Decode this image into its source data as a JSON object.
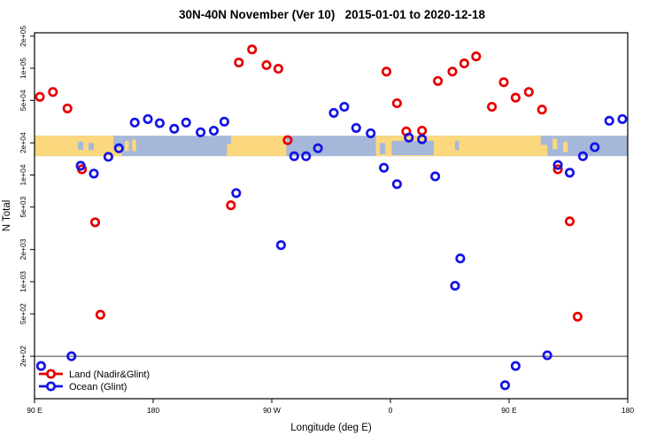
{
  "title": "30N-40N November (Ver 10)   2015-01-01 to 2020-12-18",
  "chart_data": {
    "type": "scatter",
    "title": "30N-40N November (Ver 10)   2015-01-01 to 2020-12-18",
    "xlabel": "Longitude (deg E)",
    "ylabel": "N Total",
    "x_scale": "linear",
    "y_scale": "log",
    "xlim": [
      90,
      540
    ],
    "ylim": [
      80,
      215000
    ],
    "grid": false,
    "x_ticks": [
      {
        "value": 90,
        "label": "90 E"
      },
      {
        "value": 180,
        "label": "180"
      },
      {
        "value": 270,
        "label": "90 W"
      },
      {
        "value": 360,
        "label": "0"
      },
      {
        "value": 450,
        "label": "90 E"
      },
      {
        "value": 540,
        "label": "180"
      }
    ],
    "y_ticks": [
      {
        "value": 200000,
        "label": "2e+05"
      },
      {
        "value": 100000,
        "label": "1e+05"
      },
      {
        "value": 50000,
        "label": "5e+04"
      },
      {
        "value": 20000,
        "label": "2e+04"
      },
      {
        "value": 10000,
        "label": "1e+04"
      },
      {
        "value": 5000,
        "label": "5e+03"
      },
      {
        "value": 2000,
        "label": "2e+03"
      },
      {
        "value": 1000,
        "label": "1e+03"
      },
      {
        "value": 500,
        "label": "5e+02"
      },
      {
        "value": 200,
        "label": "2e+02"
      }
    ],
    "reference_line_y": 200,
    "map_band": {
      "value_top": 23300,
      "value_bottom": 15000,
      "ocean_color": "#a6b8da",
      "land_color": "#fbd77d",
      "land_segments": [
        {
          "x0": 90,
          "x1": 156
        },
        {
          "x0": 158.5,
          "x1": 161.5,
          "t": 0.25,
          "h": 0.5
        },
        {
          "x0": 164,
          "x1": 167,
          "t": 0.2,
          "h": 0.55
        },
        {
          "x0": 236,
          "x1": 281
        },
        {
          "x0": 349,
          "x1": 479
        },
        {
          "x0": 483,
          "x1": 486.5,
          "t": 0.15,
          "h": 0.5
        },
        {
          "x0": 491,
          "x1": 494.5,
          "t": 0.3,
          "h": 0.5
        }
      ],
      "ocean_patches": [
        {
          "x0": 123,
          "x1": 127,
          "t": 0.3,
          "h": 0.4
        },
        {
          "x0": 131,
          "x1": 135,
          "t": 0.35,
          "h": 0.35
        },
        {
          "x0": 150,
          "x1": 156,
          "t": 0.0,
          "h": 0.6
        },
        {
          "x0": 236,
          "x1": 239,
          "t": 0.0,
          "h": 0.4
        },
        {
          "x0": 352,
          "x1": 356,
          "t": 0.35,
          "h": 0.55
        },
        {
          "x0": 361,
          "x1": 393,
          "t": 0.25,
          "h": 0.7
        },
        {
          "x0": 409,
          "x1": 412,
          "t": 0.25,
          "h": 0.45
        },
        {
          "x0": 474,
          "x1": 480,
          "t": 0.0,
          "h": 0.45
        }
      ]
    },
    "series": [
      {
        "name": "Land (Nadir&Glint)",
        "color": "#e60000",
        "points": [
          [
            94,
            54000
          ],
          [
            104,
            60000
          ],
          [
            115,
            42000
          ],
          [
            126,
            11300
          ],
          [
            136,
            3600
          ],
          [
            140,
            490
          ],
          [
            239,
            5200
          ],
          [
            245,
            113000
          ],
          [
            255,
            150000
          ],
          [
            266,
            107000
          ],
          [
            275,
            99000
          ],
          [
            282,
            21200
          ],
          [
            357,
            93000
          ],
          [
            365,
            47000
          ],
          [
            372,
            25600
          ],
          [
            384,
            26000
          ],
          [
            396,
            76000
          ],
          [
            407,
            93000
          ],
          [
            416,
            111000
          ],
          [
            425,
            129000
          ],
          [
            437,
            43600
          ],
          [
            446,
            74000
          ],
          [
            455,
            53000
          ],
          [
            465,
            60000
          ],
          [
            475,
            41000
          ],
          [
            487,
            11300
          ],
          [
            496,
            3680
          ],
          [
            502,
            470
          ]
        ]
      },
      {
        "name": "Ocean (Glint)",
        "color": "#1414e6",
        "points": [
          [
            95,
            162
          ],
          [
            118,
            200
          ],
          [
            125,
            12200
          ],
          [
            135,
            10300
          ],
          [
            146,
            14800
          ],
          [
            154,
            17800
          ],
          [
            166,
            31000
          ],
          [
            176,
            33400
          ],
          [
            185,
            30600
          ],
          [
            196,
            27100
          ],
          [
            205,
            31000
          ],
          [
            216,
            25100
          ],
          [
            226,
            26000
          ],
          [
            234,
            31600
          ],
          [
            243,
            6760
          ],
          [
            277,
            2200
          ],
          [
            287,
            15000
          ],
          [
            296,
            15000
          ],
          [
            305,
            17800
          ],
          [
            317,
            38200
          ],
          [
            325,
            43600
          ],
          [
            334,
            27600
          ],
          [
            345,
            24600
          ],
          [
            355,
            11700
          ],
          [
            365,
            8200
          ],
          [
            374,
            22400
          ],
          [
            384,
            21600
          ],
          [
            394,
            9700
          ],
          [
            409,
            916
          ],
          [
            413,
            1650
          ],
          [
            447,
            107
          ],
          [
            455,
            162
          ],
          [
            479,
            204
          ],
          [
            487,
            12400
          ],
          [
            496,
            10500
          ],
          [
            506,
            15000
          ],
          [
            515,
            18200
          ],
          [
            526,
            32200
          ],
          [
            536,
            33400
          ]
        ]
      }
    ],
    "legend": {
      "position": "bottom-left",
      "entries": [
        {
          "label": "Land (Nadir&Glint)",
          "color": "#e60000"
        },
        {
          "label": "Ocean (Glint)",
          "color": "#1414e6"
        }
      ]
    }
  }
}
